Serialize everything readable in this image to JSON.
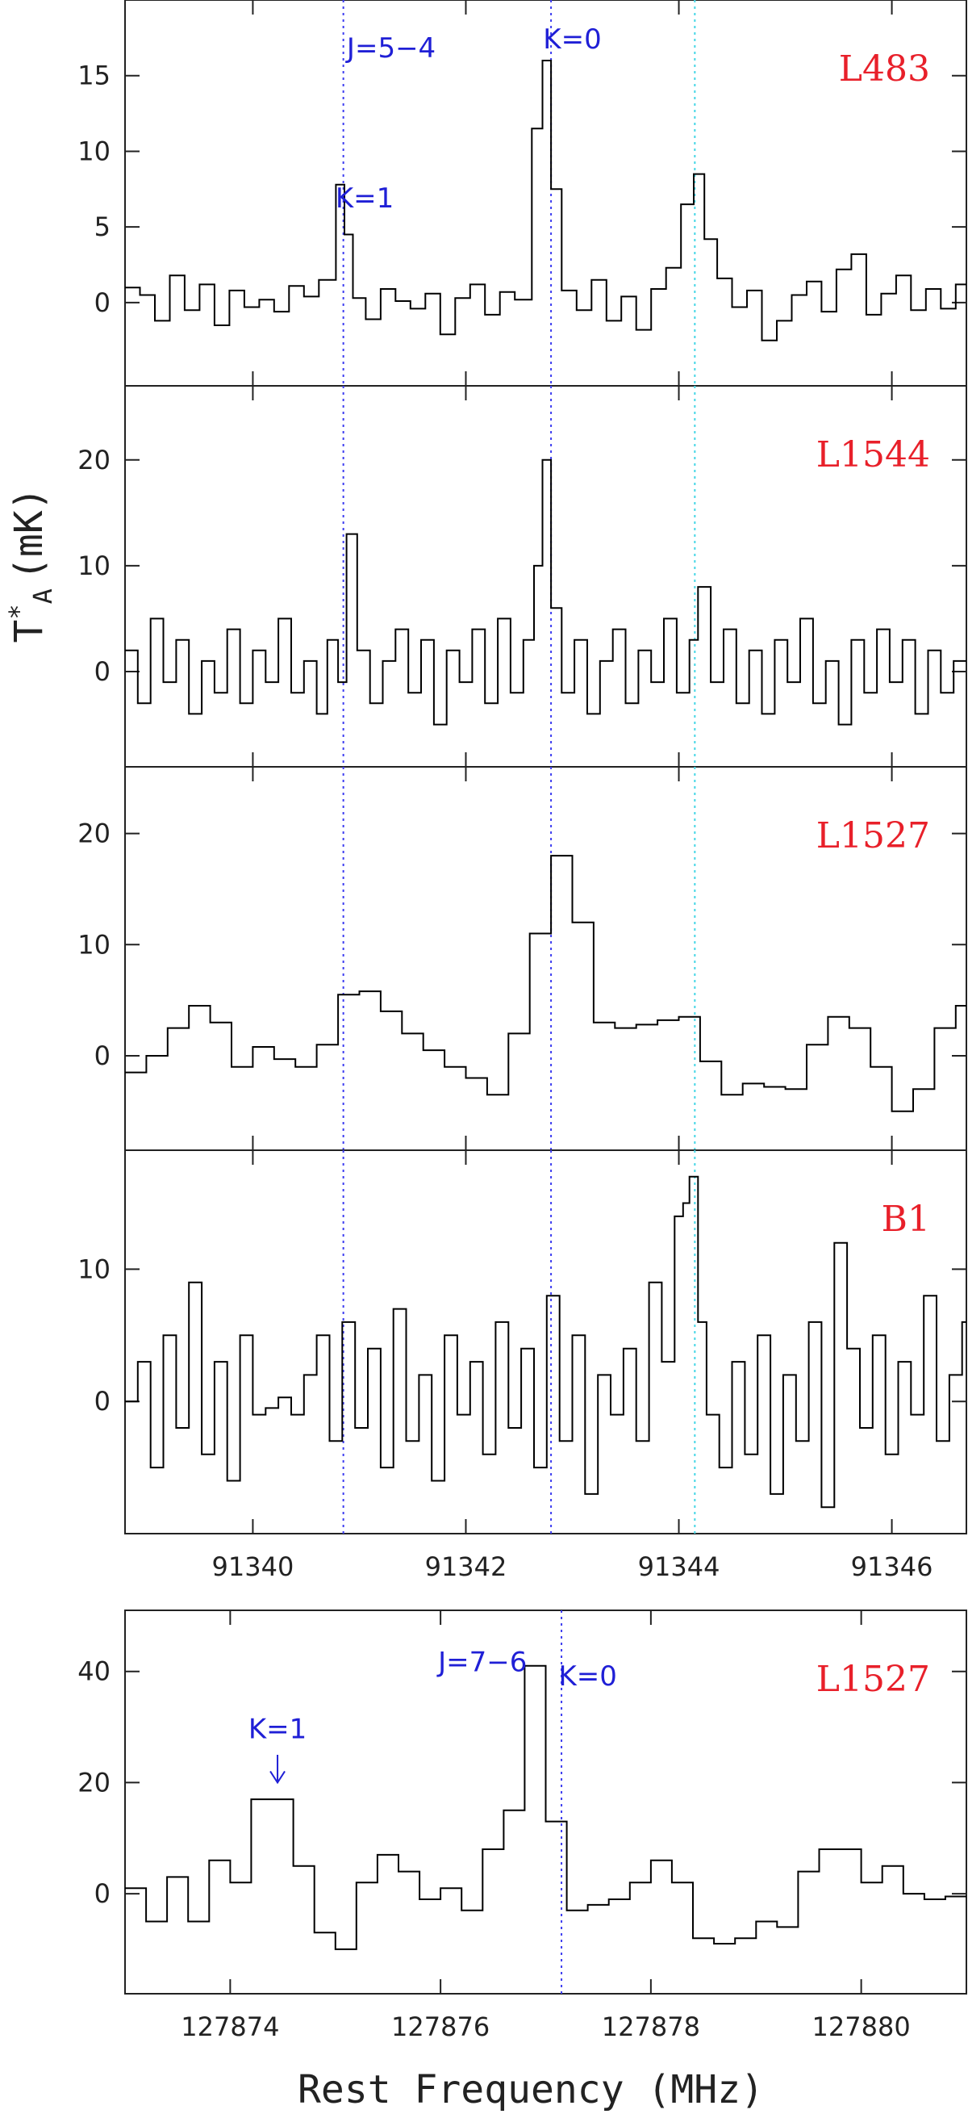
{
  "chart_data": {
    "type": "line",
    "line_style": "step",
    "ylabel": "T*A (mK)",
    "xlabel": "Rest Frequency (MHz)",
    "colors": {
      "spectrum": "#000000",
      "source_label": "#e8202a",
      "annotation": "#1f1fd6",
      "k_line": "#3d3df0",
      "cyan_line": "#45d6e6"
    },
    "panels": [
      {
        "id": "L483",
        "source": "L483",
        "xlim": [
          91338.8,
          91346.7
        ],
        "ylim": [
          -5.5,
          20
        ],
        "yticks": [
          0,
          5,
          10,
          15
        ],
        "xticks": [
          91340,
          91342,
          91344,
          91346
        ],
        "show_xtick_labels": false,
        "k_lines": [
          91340.85,
          91342.8
        ],
        "cyan_lines": [
          91344.15
        ],
        "annotations": [
          {
            "text": "J=5−4",
            "x": 91341.3,
            "y": 16.2
          },
          {
            "text": "K=0",
            "x": 91343.0,
            "y": 16.8
          },
          {
            "text": "K=1",
            "x": 91341.05,
            "y": 6.3
          }
        ],
        "x": [
          91338.8,
          91338.94,
          91339.08,
          91339.22,
          91339.36,
          91339.5,
          91339.64,
          91339.78,
          91339.92,
          91340.06,
          91340.2,
          91340.34,
          91340.48,
          91340.62,
          91340.78,
          91340.86,
          91340.94,
          91341.06,
          91341.2,
          91341.34,
          91341.48,
          91341.62,
          91341.76,
          91341.9,
          91342.04,
          91342.18,
          91342.32,
          91342.46,
          91342.62,
          91342.72,
          91342.8,
          91342.9,
          91343.04,
          91343.18,
          91343.32,
          91343.46,
          91343.6,
          91343.74,
          91343.88,
          91344.02,
          91344.14,
          91344.24,
          91344.36,
          91344.5,
          91344.64,
          91344.78,
          91344.92,
          91345.06,
          91345.2,
          91345.34,
          91345.48,
          91345.62,
          91345.76,
          91345.9,
          91346.04,
          91346.18,
          91346.32,
          91346.46,
          91346.6
        ],
        "y": [
          1,
          0.5,
          -1.2,
          1.8,
          -0.5,
          1.2,
          -1.5,
          0.8,
          -0.3,
          0.2,
          -0.6,
          1.1,
          0.4,
          1.5,
          7.8,
          4.5,
          0.3,
          -1.1,
          0.9,
          0.1,
          -0.4,
          0.6,
          -2.1,
          0.3,
          1.2,
          -0.8,
          0.7,
          0.2,
          11.5,
          16,
          7.5,
          0.8,
          -0.5,
          1.5,
          -1.2,
          0.4,
          -1.8,
          0.9,
          2.3,
          6.5,
          8.5,
          4.2,
          1.6,
          -0.3,
          0.8,
          -2.5,
          -1.2,
          0.5,
          1.4,
          -0.6,
          2.2,
          3.2,
          -0.8,
          0.6,
          1.8,
          -0.5,
          0.9,
          -0.4,
          1.2
        ]
      },
      {
        "id": "L1544",
        "source": "L1544",
        "xlim": [
          91338.8,
          91346.7
        ],
        "ylim": [
          -9,
          27
        ],
        "yticks": [
          0,
          10,
          20
        ],
        "xticks": [
          91340,
          91342,
          91344,
          91346
        ],
        "show_xtick_labels": false,
        "k_lines": [
          91340.85,
          91342.8
        ],
        "cyan_lines": [
          91344.15
        ],
        "annotations": [],
        "x": [
          91338.8,
          91338.92,
          91339.04,
          91339.16,
          91339.28,
          91339.4,
          91339.52,
          91339.64,
          91339.76,
          91339.88,
          91340,
          91340.12,
          91340.24,
          91340.36,
          91340.48,
          91340.6,
          91340.7,
          91340.8,
          91340.88,
          91340.98,
          91341.1,
          91341.22,
          91341.34,
          91341.46,
          91341.58,
          91341.7,
          91341.82,
          91341.94,
          91342.06,
          91342.18,
          91342.3,
          91342.42,
          91342.54,
          91342.64,
          91342.72,
          91342.8,
          91342.9,
          91343.02,
          91343.14,
          91343.26,
          91343.38,
          91343.5,
          91343.62,
          91343.74,
          91343.86,
          91343.98,
          91344.1,
          91344.18,
          91344.3,
          91344.42,
          91344.54,
          91344.66,
          91344.78,
          91344.9,
          91345.02,
          91345.14,
          91345.26,
          91345.38,
          91345.5,
          91345.62,
          91345.74,
          91345.86,
          91345.98,
          91346.1,
          91346.22,
          91346.34,
          91346.46,
          91346.58
        ],
        "y": [
          2,
          -3,
          5,
          -1,
          3,
          -4,
          1,
          -2,
          4,
          -3,
          2,
          -1,
          5,
          -2,
          1,
          -4,
          3,
          -1,
          13,
          2,
          -3,
          1,
          4,
          -2,
          3,
          -5,
          2,
          -1,
          4,
          -3,
          5,
          -2,
          3,
          10,
          20,
          6,
          -2,
          3,
          -4,
          1,
          4,
          -3,
          2,
          -1,
          5,
          -2,
          3,
          8,
          -1,
          4,
          -3,
          2,
          -4,
          3,
          -1,
          5,
          -3,
          1,
          -5,
          3,
          -2,
          4,
          -1,
          3,
          -4,
          2,
          -2,
          1
        ]
      },
      {
        "id": "L1527a",
        "source": "L1527",
        "xlim": [
          91338.8,
          91346.7
        ],
        "ylim": [
          -8.5,
          26
        ],
        "yticks": [
          0,
          10,
          20
        ],
        "xticks": [
          91340,
          91342,
          91344,
          91346
        ],
        "show_xtick_labels": false,
        "k_lines": [
          91340.85,
          91342.8
        ],
        "cyan_lines": [
          91344.15
        ],
        "annotations": [],
        "x": [
          91338.8,
          91339,
          91339.2,
          91339.4,
          91339.6,
          91339.8,
          91340,
          91340.2,
          91340.4,
          91340.6,
          91340.8,
          91341,
          91341.2,
          91341.4,
          91341.6,
          91341.8,
          91342,
          91342.2,
          91342.4,
          91342.6,
          91342.8,
          91343,
          91343.2,
          91343.4,
          91343.6,
          91343.8,
          91344,
          91344.2,
          91344.4,
          91344.6,
          91344.8,
          91345,
          91345.2,
          91345.4,
          91345.6,
          91345.8,
          91346,
          91346.2,
          91346.4,
          91346.6
        ],
        "y": [
          -1.5,
          0,
          2.5,
          4.5,
          3,
          -1,
          0.8,
          -0.3,
          -1,
          1,
          5.5,
          5.8,
          4,
          2,
          0.5,
          -1,
          -2,
          -3.5,
          2,
          11,
          18,
          12,
          3,
          2.5,
          2.8,
          3.2,
          3.5,
          -0.5,
          -3.5,
          -2.5,
          -2.8,
          -3,
          1,
          3.5,
          2.5,
          -1,
          -5,
          -3,
          2.5,
          4.5
        ]
      },
      {
        "id": "B1",
        "source": "B1",
        "xlim": [
          91338.8,
          91346.7
        ],
        "ylim": [
          -10,
          19
        ],
        "yticks": [
          0,
          10
        ],
        "xticks": [
          91340,
          91342,
          91344,
          91346
        ],
        "show_xtick_labels": true,
        "xtick_labels": [
          "91340",
          "91342",
          "91344",
          "91346"
        ],
        "k_lines": [
          91340.85,
          91342.8
        ],
        "cyan_lines": [
          91344.15
        ],
        "annotations": [],
        "x": [
          91338.8,
          91338.92,
          91339.04,
          91339.16,
          91339.28,
          91339.4,
          91339.52,
          91339.64,
          91339.76,
          91339.88,
          91340,
          91340.12,
          91340.24,
          91340.36,
          91340.48,
          91340.6,
          91340.72,
          91340.84,
          91340.96,
          91341.08,
          91341.2,
          91341.32,
          91341.44,
          91341.56,
          91341.68,
          91341.8,
          91341.92,
          91342.04,
          91342.16,
          91342.28,
          91342.4,
          91342.52,
          91342.64,
          91342.76,
          91342.88,
          91343,
          91343.12,
          91343.24,
          91343.36,
          91343.48,
          91343.6,
          91343.72,
          91343.84,
          91343.96,
          91344.04,
          91344.1,
          91344.18,
          91344.26,
          91344.38,
          91344.5,
          91344.62,
          91344.74,
          91344.86,
          91344.98,
          91345.1,
          91345.22,
          91345.34,
          91345.46,
          91345.58,
          91345.7,
          91345.82,
          91345.94,
          91346.06,
          91346.18,
          91346.3,
          91346.42,
          91346.54,
          91346.66
        ],
        "y": [
          0,
          3,
          -5,
          5,
          -2,
          9,
          -4,
          3,
          -6,
          5,
          -1,
          -0.5,
          0.3,
          -1,
          2,
          5,
          -3,
          6,
          -2,
          4,
          -5,
          7,
          -3,
          2,
          -6,
          5,
          -1,
          3,
          -4,
          6,
          -2,
          4,
          -5,
          8,
          -3,
          5,
          -7,
          2,
          -1,
          4,
          -3,
          9,
          3,
          14,
          15,
          17,
          6,
          -1,
          -5,
          3,
          -4,
          5,
          -7,
          2,
          -3,
          6,
          -8,
          12,
          4,
          -2,
          5,
          -4,
          3,
          -1,
          8,
          -3,
          2,
          6
        ]
      },
      {
        "id": "L1527b",
        "source": "L1527",
        "xlim": [
          127873,
          127881
        ],
        "ylim": [
          -18,
          51
        ],
        "yticks": [
          0,
          20,
          40
        ],
        "xticks": [
          127874,
          127876,
          127878,
          127880
        ],
        "show_xtick_labels": true,
        "xtick_labels": [
          "127874",
          "127876",
          "127878",
          "127880"
        ],
        "k_lines": [
          127877.15
        ],
        "cyan_lines": [],
        "annotations": [
          {
            "text": "J=7−6",
            "x": 127876.4,
            "y": 40
          },
          {
            "text": "K=0",
            "x": 127877.4,
            "y": 37.5
          },
          {
            "text": "K=1",
            "x": 127874.45,
            "y": 28
          }
        ],
        "arrow": {
          "x": 127874.45,
          "y_from": 25,
          "y_to": 20
        },
        "x": [
          127873,
          127873.2,
          127873.4,
          127873.6,
          127873.8,
          127874,
          127874.2,
          127874.4,
          127874.6,
          127874.8,
          127875,
          127875.2,
          127875.4,
          127875.6,
          127875.8,
          127876,
          127876.2,
          127876.4,
          127876.6,
          127876.8,
          127877,
          127877.2,
          127877.4,
          127877.6,
          127877.8,
          127878,
          127878.2,
          127878.4,
          127878.6,
          127878.8,
          127879,
          127879.2,
          127879.4,
          127879.6,
          127879.8,
          127880,
          127880.2,
          127880.4,
          127880.6,
          127880.8
        ],
        "y": [
          1,
          -5,
          3,
          -5,
          6,
          2,
          17,
          17,
          5,
          -7,
          -10,
          2,
          7,
          4,
          -1,
          1,
          -3,
          8,
          15,
          41,
          13,
          -3,
          -2,
          -1,
          2,
          6,
          2,
          -8,
          -9,
          -8,
          -5,
          -6,
          4,
          8,
          8,
          2,
          5,
          0,
          -1,
          -0.5
        ]
      }
    ]
  },
  "labels": {
    "ylabel_main": "T",
    "ylabel_sup": "*",
    "ylabel_sub": "A",
    "ylabel_unit": "(mK)",
    "xlabel": "Rest Frequency (MHz)"
  }
}
